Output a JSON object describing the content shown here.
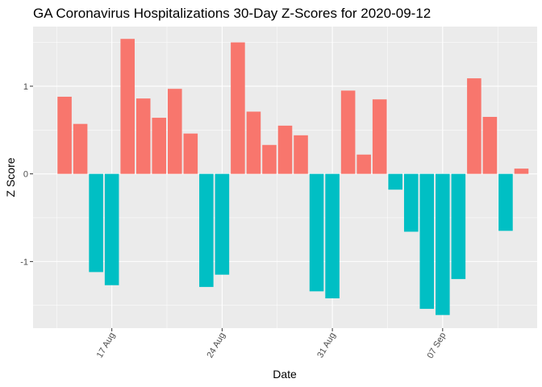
{
  "chart_data": {
    "type": "bar",
    "title": "GA Coronavirus Hospitalizations 30-Day Z-Scores for 2020-09-12",
    "xlabel": "Date",
    "ylabel": "Z Score",
    "x": [
      "2020-08-14",
      "2020-08-15",
      "2020-08-16",
      "2020-08-17",
      "2020-08-18",
      "2020-08-19",
      "2020-08-20",
      "2020-08-21",
      "2020-08-22",
      "2020-08-23",
      "2020-08-24",
      "2020-08-25",
      "2020-08-26",
      "2020-08-27",
      "2020-08-28",
      "2020-08-29",
      "2020-08-30",
      "2020-08-31",
      "2020-09-01",
      "2020-09-02",
      "2020-09-03",
      "2020-09-04",
      "2020-09-05",
      "2020-09-06",
      "2020-09-07",
      "2020-09-08",
      "2020-09-09",
      "2020-09-10",
      "2020-09-11",
      "2020-09-12"
    ],
    "values": [
      0.88,
      0.57,
      -1.12,
      -1.27,
      1.54,
      0.86,
      0.64,
      0.97,
      0.46,
      -1.29,
      -1.15,
      1.5,
      0.71,
      0.33,
      0.55,
      0.44,
      -1.34,
      -1.42,
      0.95,
      0.22,
      0.85,
      -0.18,
      -0.66,
      -1.54,
      -1.61,
      -1.2,
      1.09,
      0.65,
      -0.65,
      0.06
    ],
    "x_ticks": [
      {
        "date": "2020-08-17",
        "label": "17 Aug"
      },
      {
        "date": "2020-08-24",
        "label": "24 Aug"
      },
      {
        "date": "2020-08-31",
        "label": "31 Aug"
      },
      {
        "date": "2020-09-07",
        "label": "07 Sep"
      }
    ],
    "y_ticks": [
      -1,
      0,
      1
    ],
    "ylim": [
      -1.76,
      1.68
    ],
    "xlim": [
      "2020-08-12",
      "2020-09-13"
    ],
    "grid": true,
    "legend": "none",
    "colors": {
      "positive": "#F8766D",
      "negative": "#00BFC4",
      "panel": "#EBEBEB",
      "grid_major": "#FFFFFF"
    }
  }
}
